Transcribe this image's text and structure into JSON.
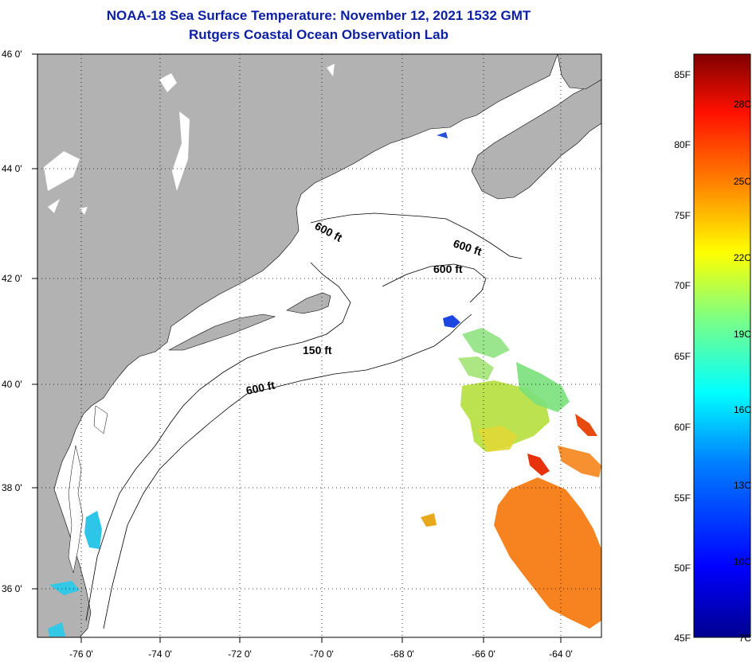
{
  "header": {
    "title": "NOAA-18 Sea Surface Temperature:  November 12, 2021 1532 GMT",
    "subtitle": "Rutgers Coastal Ocean Observation Lab"
  },
  "map": {
    "lat_labels": [
      "46 0'",
      "44 0'",
      "42 0'",
      "40 0'",
      "38 0'",
      "36 0'"
    ],
    "lon_labels": [
      "-76 0'",
      "-74 0'",
      "-72 0'",
      "-70 0'",
      "-68 0'",
      "-66 0'",
      "-64 0'"
    ],
    "contour_labels": [
      "600 ft",
      "600 ft",
      "600 ft",
      "150 ft",
      "600 ft"
    ],
    "colors": {
      "land": "#b2b2b2",
      "ocean": "#ffffff",
      "grid": "#000000"
    }
  },
  "colorbar": {
    "f_labels": [
      "85F",
      "80F",
      "75F",
      "70F",
      "65F",
      "60F",
      "55F",
      "50F",
      "45F"
    ],
    "c_labels": [
      "28C",
      "25C",
      "22C",
      "19C",
      "16C",
      "13C",
      "10C",
      "7C"
    ]
  }
}
